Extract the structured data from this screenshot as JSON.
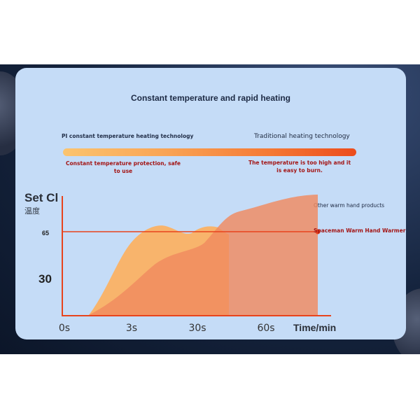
{
  "chart_data": {
    "type": "area",
    "title": "Constant temperature and rapid heating",
    "ylabel": "Set Cl",
    "ylabel_sub": "温度",
    "xlabel": "Time/min",
    "categories": [
      "0s",
      "3s",
      "30s",
      "60s"
    ],
    "y_ticks": [
      "65",
      "30"
    ],
    "reference_line": {
      "value": 65,
      "label": "Spaceman Warm Hand Warmer",
      "color": "#e8431c"
    },
    "series": [
      {
        "name": "Spaceman Warm Hand Warmer",
        "color": "#f8b46c"
      },
      {
        "name": "Other warm hand products",
        "color": "#f08a5f"
      }
    ],
    "grid": false
  },
  "header": {
    "pi_label": "PI constant temperature heating technology",
    "trad_label": "Traditional heating technology",
    "note_left": "Constant temperature protection, safe to use",
    "note_right": "The temperature is too high and it is easy to burn."
  },
  "colors": {
    "card": "#c5dcf7",
    "axis": "#e8431c",
    "bar_start": "#fbc46f",
    "bar_end": "#ec4c1c"
  }
}
